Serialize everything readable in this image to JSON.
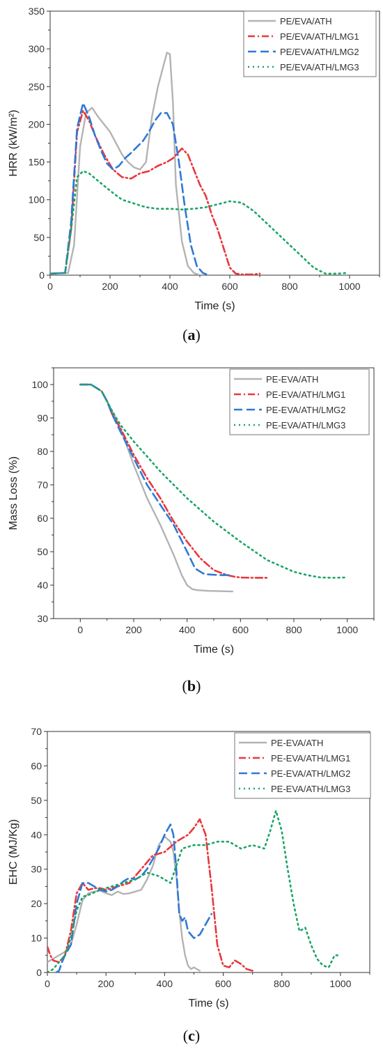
{
  "captions": [
    {
      "open": "(",
      "letter": "a",
      "close": ")"
    },
    {
      "open": "(",
      "letter": "b",
      "close": ")"
    },
    {
      "open": "(",
      "letter": "c",
      "close": ")"
    }
  ],
  "chart_data": [
    {
      "type": "line",
      "xlabel": "Time (s)",
      "ylabel": "HRR (kW/m²)",
      "xlim": [
        0,
        1100
      ],
      "ylim": [
        0,
        350
      ],
      "xticks": [
        0,
        200,
        400,
        600,
        800,
        1000
      ],
      "yticks": [
        0,
        50,
        100,
        150,
        200,
        250,
        300,
        350
      ],
      "grid": false,
      "legend_position": "top-right",
      "series": [
        {
          "name": "PE/EVA/ATH",
          "color": "#b3b3b3",
          "dash": "solid",
          "x": [
            0,
            60,
            80,
            100,
            120,
            140,
            160,
            180,
            200,
            220,
            240,
            260,
            280,
            300,
            320,
            340,
            360,
            380,
            390,
            400,
            410,
            420,
            440,
            460,
            480,
            500
          ],
          "y": [
            2,
            3,
            40,
            170,
            215,
            222,
            210,
            200,
            190,
            175,
            160,
            150,
            143,
            140,
            150,
            210,
            250,
            280,
            295,
            293,
            230,
            120,
            45,
            12,
            3,
            0
          ]
        },
        {
          "name": "PE/EVA/ATH/LMG1",
          "color": "#e8383d",
          "dash": "dashdot",
          "x": [
            0,
            50,
            70,
            90,
            110,
            130,
            150,
            180,
            210,
            240,
            270,
            300,
            330,
            360,
            390,
            410,
            440,
            460,
            480,
            500,
            520,
            540,
            560,
            580,
            600,
            620,
            640,
            680,
            700
          ],
          "y": [
            2,
            3,
            60,
            190,
            218,
            205,
            185,
            160,
            140,
            130,
            128,
            135,
            138,
            145,
            150,
            155,
            168,
            160,
            140,
            120,
            105,
            80,
            60,
            35,
            10,
            2,
            1,
            1,
            2
          ]
        },
        {
          "name": "PE/EVA/ATH/LMG2",
          "color": "#2f78d6",
          "dash": "dash",
          "x": [
            0,
            50,
            70,
            90,
            110,
            130,
            150,
            170,
            190,
            210,
            230,
            250,
            270,
            290,
            310,
            330,
            350,
            370,
            390,
            410,
            430,
            450,
            470,
            490,
            510,
            530
          ],
          "y": [
            2,
            3,
            70,
            195,
            228,
            210,
            185,
            165,
            148,
            140,
            145,
            155,
            162,
            170,
            178,
            190,
            205,
            215,
            215,
            200,
            150,
            90,
            40,
            12,
            3,
            0
          ]
        },
        {
          "name": "PE/EVA/ATH/LMG3",
          "color": "#1aa564",
          "dash": "dot",
          "x": [
            0,
            50,
            70,
            90,
            110,
            130,
            160,
            200,
            240,
            280,
            320,
            360,
            400,
            440,
            480,
            520,
            560,
            600,
            640,
            680,
            720,
            760,
            800,
            840,
            880,
            920,
            960,
            990
          ],
          "y": [
            2,
            3,
            60,
            130,
            138,
            135,
            125,
            112,
            100,
            95,
            90,
            88,
            88,
            87,
            88,
            90,
            94,
            98,
            96,
            85,
            70,
            55,
            40,
            25,
            10,
            2,
            2,
            3
          ]
        }
      ]
    },
    {
      "type": "line",
      "xlabel": "Time (s)",
      "ylabel": "Mass Loss (%)",
      "xlim": [
        -100,
        1100
      ],
      "ylim": [
        30,
        105
      ],
      "xticks": [
        0,
        200,
        400,
        600,
        800,
        1000
      ],
      "yticks": [
        30,
        40,
        50,
        60,
        70,
        80,
        90,
        100
      ],
      "grid": false,
      "legend_position": "top-right",
      "series": [
        {
          "name": "PE-EVA/ATH",
          "color": "#b3b3b3",
          "dash": "solid",
          "x": [
            0,
            40,
            80,
            100,
            120,
            150,
            200,
            250,
            300,
            350,
            380,
            400,
            420,
            440,
            480,
            520,
            570
          ],
          "y": [
            100,
            100,
            98,
            95,
            92,
            87,
            76,
            66,
            58,
            49,
            43,
            40,
            38.8,
            38.5,
            38.3,
            38.2,
            38.1
          ]
        },
        {
          "name": "PE-EVA/ATH/LMG1",
          "color": "#e8383d",
          "dash": "dashdot",
          "x": [
            0,
            40,
            80,
            100,
            120,
            150,
            200,
            250,
            300,
            350,
            400,
            450,
            500,
            550,
            580,
            600,
            650,
            700
          ],
          "y": [
            100,
            100,
            98,
            95,
            91,
            87,
            79,
            72,
            66,
            59,
            53,
            48,
            44.5,
            43,
            42.5,
            42.3,
            42.2,
            42.2
          ]
        },
        {
          "name": "PE-EVA/ATH/LMG2",
          "color": "#2f78d6",
          "dash": "dash",
          "x": [
            0,
            40,
            80,
            100,
            120,
            150,
            200,
            250,
            300,
            350,
            400,
            430,
            460,
            480,
            500,
            530,
            560
          ],
          "y": [
            100,
            100,
            98,
            95,
            91,
            86,
            78,
            70,
            64,
            58,
            50,
            45,
            43.5,
            43.2,
            43.1,
            43,
            43
          ]
        },
        {
          "name": "PE-EVA/ATH/LMG3",
          "color": "#1aa564",
          "dash": "dot",
          "x": [
            0,
            40,
            80,
            100,
            120,
            150,
            200,
            300,
            400,
            500,
            600,
            700,
            800,
            850,
            900,
            950,
            990
          ],
          "y": [
            100,
            100,
            98,
            95,
            92,
            88,
            83,
            74,
            66,
            59,
            53,
            47.5,
            44,
            43,
            42.3,
            42.2,
            42.3
          ]
        }
      ]
    },
    {
      "type": "line",
      "xlabel": "Time (s)",
      "ylabel": "EHC (MJ/Kg)",
      "xlim": [
        0,
        1100
      ],
      "ylim": [
        0,
        70
      ],
      "xticks": [
        0,
        200,
        400,
        600,
        800,
        1000
      ],
      "yticks": [
        0,
        10,
        20,
        30,
        40,
        50,
        60,
        70
      ],
      "grid": false,
      "legend_position": "top-right",
      "series": [
        {
          "name": "PE-EVA/ATH",
          "color": "#b3b3b3",
          "dash": "solid",
          "x": [
            0,
            40,
            60,
            80,
            100,
            120,
            140,
            160,
            180,
            200,
            220,
            240,
            260,
            280,
            300,
            320,
            340,
            360,
            380,
            400,
            420,
            430,
            440,
            450,
            460,
            470,
            480,
            490,
            500,
            510,
            520
          ],
          "y": [
            3,
            5,
            6,
            8,
            14,
            21,
            23,
            23.5,
            23.8,
            23,
            22.5,
            23.5,
            22.8,
            23,
            23.5,
            24,
            27,
            31,
            37,
            39.5,
            38,
            35,
            28,
            18,
            10,
            5,
            2,
            1,
            1.5,
            1,
            0.5
          ]
        },
        {
          "name": "PE-EVA/ATH/LMG1",
          "color": "#e8383d",
          "dash": "dashdot",
          "x": [
            0,
            10,
            20,
            40,
            60,
            80,
            100,
            120,
            140,
            160,
            180,
            200,
            240,
            280,
            320,
            360,
            400,
            440,
            480,
            500,
            520,
            540,
            560,
            580,
            600,
            620,
            640,
            660,
            680,
            700
          ],
          "y": [
            7.5,
            5,
            3.5,
            3,
            5,
            12,
            23,
            26,
            24,
            24.5,
            24.5,
            24,
            25,
            26,
            30,
            34,
            35,
            38,
            40,
            42,
            44.5,
            40,
            25,
            8,
            2,
            1.5,
            3.5,
            2.5,
            1,
            0.5
          ]
        },
        {
          "name": "PE-EVA/ATH/LMG2",
          "color": "#2f78d6",
          "dash": "dash",
          "x": [
            30,
            40,
            50,
            60,
            80,
            100,
            120,
            140,
            160,
            180,
            200,
            220,
            240,
            260,
            280,
            300,
            320,
            340,
            360,
            380,
            400,
            420,
            430,
            440,
            450,
            460,
            470,
            480,
            500,
            520,
            540,
            560
          ],
          "y": [
            0,
            0.5,
            3,
            5,
            8,
            20,
            26,
            26,
            25,
            24,
            23.5,
            24,
            25,
            26.5,
            27.5,
            27,
            28,
            30,
            33,
            36,
            40,
            43,
            40,
            30,
            17,
            15,
            16,
            12,
            10,
            11,
            14,
            17
          ]
        },
        {
          "name": "PE-EVA/ATH/LMG3",
          "color": "#1aa564",
          "dash": "dot",
          "x": [
            0,
            20,
            40,
            60,
            80,
            100,
            120,
            140,
            180,
            220,
            260,
            300,
            340,
            380,
            420,
            460,
            500,
            540,
            580,
            620,
            660,
            700,
            740,
            760,
            780,
            800,
            820,
            840,
            860,
            880,
            900,
            920,
            940,
            960,
            980,
            990
          ],
          "y": [
            0,
            1,
            3,
            5,
            10,
            18,
            22,
            22.5,
            24,
            25,
            26,
            27,
            29,
            28,
            26,
            36,
            37,
            37,
            38,
            38,
            36,
            37,
            36,
            41,
            47,
            41,
            30,
            20,
            12,
            13,
            8,
            4,
            2,
            1.5,
            5,
            5
          ]
        }
      ]
    }
  ]
}
